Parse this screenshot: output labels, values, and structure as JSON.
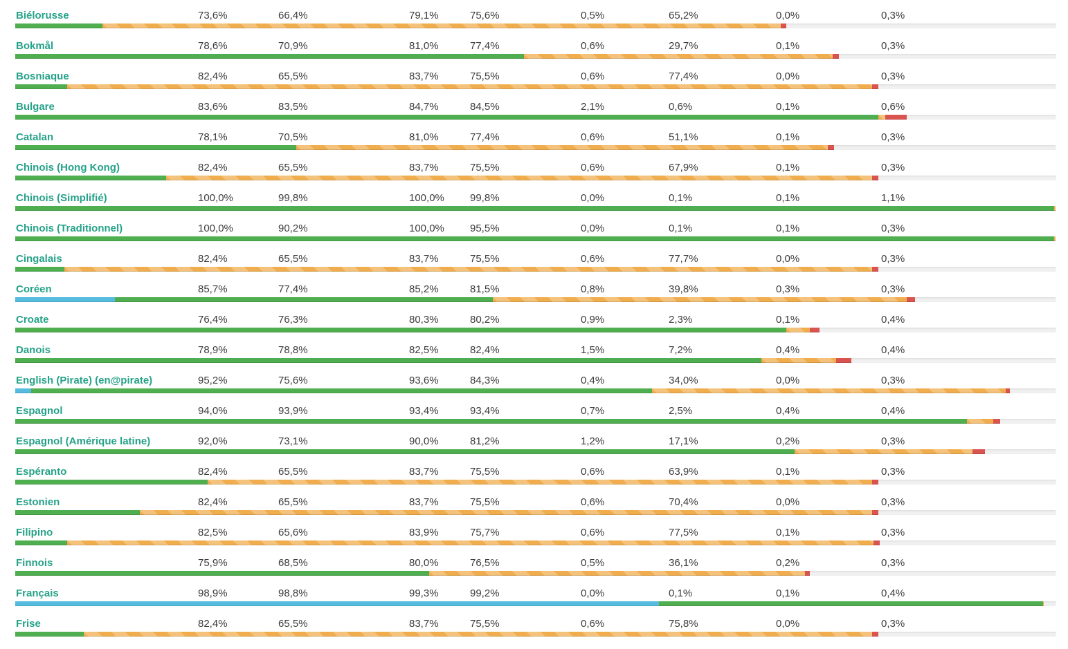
{
  "colors": {
    "language_link": "#26a289",
    "value_text": "#3c3c3c",
    "bar_approved_blue": "#55bcdf",
    "bar_translated_green": "#4fae50",
    "bar_needs_editing_orange": "#f0ad4e",
    "bar_checks_red": "#d9534f",
    "bar_track_gray": "#f0f0f0"
  },
  "table": {
    "rows": [
      {
        "language": "Biélorusse",
        "values": [
          "73,6%",
          "66,4%",
          "79,1%",
          "75,6%",
          "0,5%",
          "65,2%",
          "0,0%",
          "0,3%"
        ],
        "bar": {
          "blue": 0,
          "green": 8.4,
          "orange": 65.2,
          "red": 0.5
        }
      },
      {
        "language": "Bokmål",
        "values": [
          "78,6%",
          "70,9%",
          "81,0%",
          "77,4%",
          "0,6%",
          "29,7%",
          "0,1%",
          "0,3%"
        ],
        "bar": {
          "blue": 0,
          "green": 48.9,
          "orange": 29.7,
          "red": 0.6
        }
      },
      {
        "language": "Bosniaque",
        "values": [
          "82,4%",
          "65,5%",
          "83,7%",
          "75,5%",
          "0,6%",
          "77,4%",
          "0,0%",
          "0,3%"
        ],
        "bar": {
          "blue": 0,
          "green": 5.0,
          "orange": 77.4,
          "red": 0.6
        }
      },
      {
        "language": "Bulgare",
        "values": [
          "83,6%",
          "83,5%",
          "84,7%",
          "84,5%",
          "2,1%",
          "0,6%",
          "0,1%",
          "0,6%"
        ],
        "bar": {
          "blue": 0,
          "green": 83.0,
          "orange": 0.6,
          "red": 2.1
        }
      },
      {
        "language": "Catalan",
        "values": [
          "78,1%",
          "70,5%",
          "81,0%",
          "77,4%",
          "0,6%",
          "51,1%",
          "0,1%",
          "0,3%"
        ],
        "bar": {
          "blue": 0,
          "green": 27.0,
          "orange": 51.1,
          "red": 0.6
        }
      },
      {
        "language": "Chinois (Hong Kong)",
        "values": [
          "82,4%",
          "65,5%",
          "83,7%",
          "75,5%",
          "0,6%",
          "67,9%",
          "0,1%",
          "0,3%"
        ],
        "bar": {
          "blue": 0,
          "green": 14.5,
          "orange": 67.9,
          "red": 0.6
        }
      },
      {
        "language": "Chinois (Simplifié)",
        "values": [
          "100,0%",
          "99,8%",
          "100,0%",
          "99,8%",
          "0,0%",
          "0,1%",
          "0,1%",
          "1,1%"
        ],
        "bar": {
          "blue": 0,
          "green": 99.9,
          "orange": 0.1,
          "red": 0
        }
      },
      {
        "language": "Chinois (Traditionnel)",
        "values": [
          "100,0%",
          "90,2%",
          "100,0%",
          "95,5%",
          "0,0%",
          "0,1%",
          "0,1%",
          "0,3%"
        ],
        "bar": {
          "blue": 0,
          "green": 99.9,
          "orange": 0.1,
          "red": 0
        }
      },
      {
        "language": "Cingalais",
        "values": [
          "82,4%",
          "65,5%",
          "83,7%",
          "75,5%",
          "0,6%",
          "77,7%",
          "0,0%",
          "0,3%"
        ],
        "bar": {
          "blue": 0,
          "green": 4.7,
          "orange": 77.7,
          "red": 0.6
        }
      },
      {
        "language": "Coréen",
        "values": [
          "85,7%",
          "77,4%",
          "85,2%",
          "81,5%",
          "0,8%",
          "39,8%",
          "0,3%",
          "0,3%"
        ],
        "bar": {
          "blue": 9.6,
          "green": 36.3,
          "orange": 39.8,
          "red": 0.8
        }
      },
      {
        "language": "Croate",
        "values": [
          "76,4%",
          "76,3%",
          "80,3%",
          "80,2%",
          "0,9%",
          "2,3%",
          "0,1%",
          "0,4%"
        ],
        "bar": {
          "blue": 0,
          "green": 74.1,
          "orange": 2.3,
          "red": 0.9
        }
      },
      {
        "language": "Danois",
        "values": [
          "78,9%",
          "78,8%",
          "82,5%",
          "82,4%",
          "1,5%",
          "7,2%",
          "0,4%",
          "0,4%"
        ],
        "bar": {
          "blue": 0,
          "green": 71.7,
          "orange": 7.2,
          "red": 1.5
        }
      },
      {
        "language": "English (Pirate) (en@pirate)",
        "values": [
          "95,2%",
          "75,6%",
          "93,6%",
          "84,3%",
          "0,4%",
          "34,0%",
          "0,0%",
          "0,3%"
        ],
        "bar": {
          "blue": 1.5,
          "green": 59.7,
          "orange": 34.0,
          "red": 0.4
        }
      },
      {
        "language": "Espagnol",
        "values": [
          "94,0%",
          "93,9%",
          "93,4%",
          "93,4%",
          "0,7%",
          "2,5%",
          "0,4%",
          "0,4%"
        ],
        "bar": {
          "blue": 0,
          "green": 91.5,
          "orange": 2.5,
          "red": 0.7
        }
      },
      {
        "language": "Espagnol (Amérique latine)",
        "values": [
          "92,0%",
          "73,1%",
          "90,0%",
          "81,2%",
          "1,2%",
          "17,1%",
          "0,2%",
          "0,3%"
        ],
        "bar": {
          "blue": 0,
          "green": 74.9,
          "orange": 17.1,
          "red": 1.2
        }
      },
      {
        "language": "Espéranto",
        "values": [
          "82,4%",
          "65,5%",
          "83,7%",
          "75,5%",
          "0,6%",
          "63,9%",
          "0,1%",
          "0,3%"
        ],
        "bar": {
          "blue": 0,
          "green": 18.5,
          "orange": 63.9,
          "red": 0.6
        }
      },
      {
        "language": "Estonien",
        "values": [
          "82,4%",
          "65,5%",
          "83,7%",
          "75,5%",
          "0,6%",
          "70,4%",
          "0,0%",
          "0,3%"
        ],
        "bar": {
          "blue": 0,
          "green": 12.0,
          "orange": 70.4,
          "red": 0.6
        }
      },
      {
        "language": "Filipino",
        "values": [
          "82,5%",
          "65,6%",
          "83,9%",
          "75,7%",
          "0,6%",
          "77,5%",
          "0,1%",
          "0,3%"
        ],
        "bar": {
          "blue": 0,
          "green": 5.0,
          "orange": 77.5,
          "red": 0.6
        }
      },
      {
        "language": "Finnois",
        "values": [
          "75,9%",
          "68,5%",
          "80,0%",
          "76,5%",
          "0,5%",
          "36,1%",
          "0,2%",
          "0,3%"
        ],
        "bar": {
          "blue": 0,
          "green": 39.8,
          "orange": 36.1,
          "red": 0.5
        }
      },
      {
        "language": "Français",
        "values": [
          "98,9%",
          "98,8%",
          "99,3%",
          "99,2%",
          "0,0%",
          "0,1%",
          "0,1%",
          "0,4%"
        ],
        "bar": {
          "blue": 61.9,
          "green": 36.9,
          "orange": 0.1,
          "red": 0
        }
      },
      {
        "language": "Frise",
        "values": [
          "82,4%",
          "65,5%",
          "83,7%",
          "75,5%",
          "0,6%",
          "75,8%",
          "0,0%",
          "0,3%"
        ],
        "bar": {
          "blue": 0,
          "green": 6.6,
          "orange": 75.8,
          "red": 0.6
        }
      }
    ]
  }
}
